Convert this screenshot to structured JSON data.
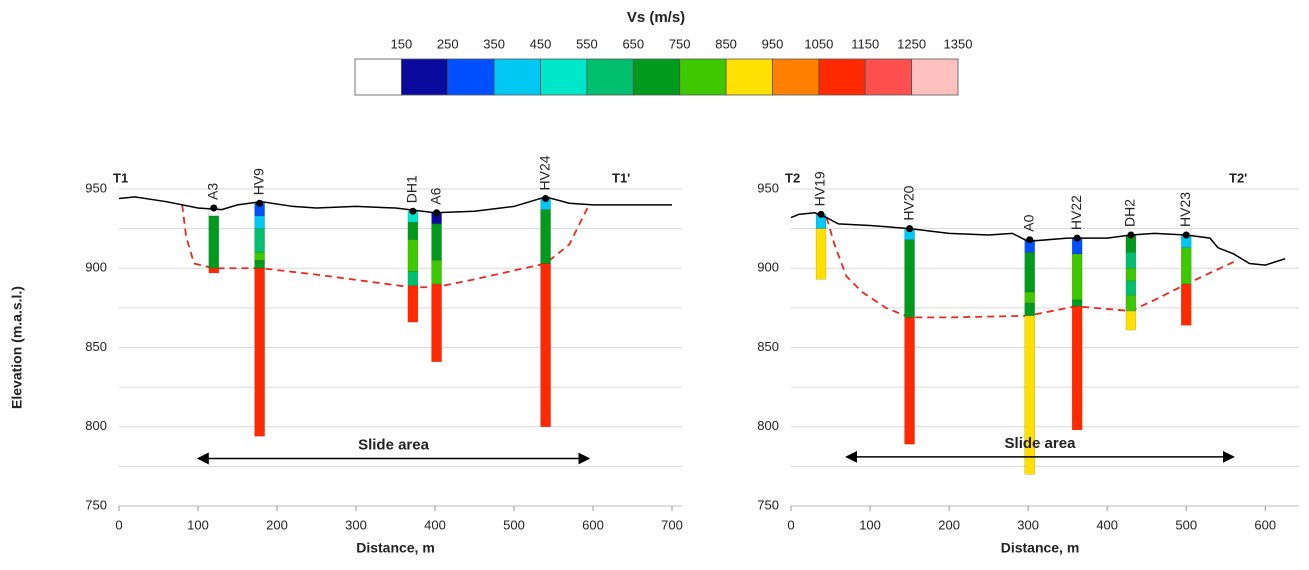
{
  "colorbar": {
    "title": "Vs (m/s)",
    "ticks": [
      150,
      250,
      350,
      450,
      550,
      650,
      750,
      850,
      950,
      1050,
      1150,
      1250,
      1350
    ],
    "colors": [
      "#ffffff",
      "#0a0a9c",
      "#0050ff",
      "#00c8f5",
      "#00e6c8",
      "#00c070",
      "#009a1e",
      "#3ec800",
      "#ffe000",
      "#ff8000",
      "#ff2a00",
      "#ff5050",
      "#ffc0c0"
    ]
  },
  "chart_data": [
    {
      "type": "profile",
      "xlabel": "Distance, m",
      "ylabel": "Elevation (m.a.s.l.)",
      "left_label": "T1",
      "right_label": "T1'",
      "xlim": [
        0,
        700
      ],
      "ylim": [
        750,
        950
      ],
      "xticks": [
        0,
        100,
        200,
        300,
        400,
        500,
        600,
        700
      ],
      "yticks": [
        750,
        800,
        850,
        900,
        950
      ],
      "ygrid": [
        775,
        800,
        825,
        850,
        875,
        900,
        925,
        950
      ],
      "surface": {
        "color": "#000000",
        "x": [
          0,
          20,
          60,
          100,
          130,
          150,
          180,
          220,
          250,
          300,
          350,
          400,
          450,
          500,
          540,
          570,
          600,
          700
        ],
        "y": [
          944,
          945,
          942,
          938,
          937,
          940,
          942,
          939,
          938,
          939,
          938,
          935,
          936,
          939,
          945,
          941,
          940,
          940
        ]
      },
      "slide_surface": {
        "color": "#e8281e",
        "x": [
          80,
          85,
          95,
          120,
          180,
          250,
          370,
          400,
          450,
          540,
          570,
          595
        ],
        "y": [
          940,
          920,
          903,
          900,
          900,
          896,
          888,
          888,
          893,
          903,
          915,
          940
        ]
      },
      "arrow": {
        "label": "Slide area",
        "x": [
          100,
          595
        ],
        "y": 780
      },
      "boreholes": [
        {
          "name": "A3",
          "x": 120,
          "layers": [
            {
              "top": 938,
              "bottom": 933,
              "color": "#ffffff"
            },
            {
              "top": 933,
              "bottom": 900,
              "color": "#009a1e"
            },
            {
              "top": 900,
              "bottom": 897,
              "color": "#ff2a00"
            }
          ]
        },
        {
          "name": "HV9",
          "x": 178,
          "layers": [
            {
              "top": 941,
              "bottom": 933,
              "color": "#0050ff"
            },
            {
              "top": 933,
              "bottom": 925,
              "color": "#00c8f5"
            },
            {
              "top": 925,
              "bottom": 910,
              "color": "#00c070"
            },
            {
              "top": 910,
              "bottom": 905,
              "color": "#3ec800"
            },
            {
              "top": 905,
              "bottom": 900,
              "color": "#009a1e"
            },
            {
              "top": 900,
              "bottom": 794,
              "color": "#ff2a00"
            }
          ]
        },
        {
          "name": "DH1",
          "x": 372,
          "layers": [
            {
              "top": 936,
              "bottom": 929,
              "color": "#00e6c8"
            },
            {
              "top": 929,
              "bottom": 918,
              "color": "#009a1e"
            },
            {
              "top": 918,
              "bottom": 898,
              "color": "#3ec800"
            },
            {
              "top": 898,
              "bottom": 889,
              "color": "#00c070"
            },
            {
              "top": 889,
              "bottom": 866,
              "color": "#ff2a00"
            }
          ]
        },
        {
          "name": "A6",
          "x": 402,
          "layers": [
            {
              "top": 935,
              "bottom": 928,
              "color": "#0a0a9c"
            },
            {
              "top": 928,
              "bottom": 905,
              "color": "#009a1e"
            },
            {
              "top": 905,
              "bottom": 890,
              "color": "#3ec800"
            },
            {
              "top": 890,
              "bottom": 841,
              "color": "#ff2a00"
            }
          ]
        },
        {
          "name": "HV24",
          "x": 540,
          "layers": [
            {
              "top": 944,
              "bottom": 937,
              "color": "#00c8f5"
            },
            {
              "top": 937,
              "bottom": 903,
              "color": "#009a1e"
            },
            {
              "top": 903,
              "bottom": 800,
              "color": "#ff2a00"
            }
          ]
        }
      ]
    },
    {
      "type": "profile",
      "xlabel": "Distance, m",
      "left_label": "T2",
      "right_label": "T2'",
      "xlim": [
        0,
        630
      ],
      "ylim": [
        750,
        950
      ],
      "xticks": [
        0,
        100,
        200,
        300,
        400,
        500,
        600
      ],
      "yticks": [
        750,
        800,
        850,
        900,
        950
      ],
      "ygrid": [
        775,
        800,
        825,
        850,
        875,
        900,
        925,
        950
      ],
      "surface": {
        "color": "#000000",
        "x": [
          0,
          10,
          30,
          45,
          60,
          100,
          150,
          200,
          250,
          280,
          300,
          350,
          400,
          430,
          460,
          500,
          530,
          540,
          560,
          580,
          600,
          625
        ],
        "y": [
          932,
          934,
          935,
          932,
          928,
          927,
          925,
          922,
          921,
          922,
          917,
          919,
          919,
          921,
          922,
          921,
          919,
          913,
          909,
          903,
          902,
          906
        ]
      },
      "slide_surface": {
        "color": "#e8281e",
        "x": [
          45,
          55,
          70,
          90,
          120,
          150,
          200,
          300,
          360,
          430,
          460,
          500,
          560
        ],
        "y": [
          932,
          915,
          895,
          885,
          875,
          869,
          869,
          870,
          876,
          873,
          880,
          890,
          904
        ]
      },
      "arrow": {
        "label": "Slide area",
        "x": [
          70,
          560
        ],
        "y": 781
      },
      "boreholes": [
        {
          "name": "HV19",
          "x": 38,
          "layers": [
            {
              "top": 934,
              "bottom": 925,
              "color": "#00c8f5"
            },
            {
              "top": 925,
              "bottom": 893,
              "color": "#ffe000"
            }
          ]
        },
        {
          "name": "HV20",
          "x": 150,
          "layers": [
            {
              "top": 925,
              "bottom": 918,
              "color": "#00c8f5"
            },
            {
              "top": 918,
              "bottom": 869,
              "color": "#009a1e"
            },
            {
              "top": 869,
              "bottom": 789,
              "color": "#ff2a00"
            }
          ]
        },
        {
          "name": "A0",
          "x": 302,
          "layers": [
            {
              "top": 918,
              "bottom": 910,
              "color": "#0050ff"
            },
            {
              "top": 910,
              "bottom": 885,
              "color": "#009a1e"
            },
            {
              "top": 885,
              "bottom": 878,
              "color": "#3ec800"
            },
            {
              "top": 878,
              "bottom": 870,
              "color": "#009a1e"
            },
            {
              "top": 870,
              "bottom": 770,
              "color": "#ffe000"
            }
          ]
        },
        {
          "name": "HV22",
          "x": 362,
          "layers": [
            {
              "top": 919,
              "bottom": 909,
              "color": "#0050ff"
            },
            {
              "top": 909,
              "bottom": 880,
              "color": "#3ec800"
            },
            {
              "top": 880,
              "bottom": 876,
              "color": "#009a1e"
            },
            {
              "top": 876,
              "bottom": 798,
              "color": "#ff2a00"
            }
          ]
        },
        {
          "name": "DH2",
          "x": 430,
          "layers": [
            {
              "top": 921,
              "bottom": 910,
              "color": "#009a1e"
            },
            {
              "top": 910,
              "bottom": 900,
              "color": "#00c070"
            },
            {
              "top": 900,
              "bottom": 892,
              "color": "#3ec800"
            },
            {
              "top": 892,
              "bottom": 883,
              "color": "#00c070"
            },
            {
              "top": 883,
              "bottom": 873,
              "color": "#3ec800"
            },
            {
              "top": 873,
              "bottom": 861,
              "color": "#ffe000"
            }
          ]
        },
        {
          "name": "HV23",
          "x": 500,
          "layers": [
            {
              "top": 921,
              "bottom": 913,
              "color": "#00c8f5"
            },
            {
              "top": 913,
              "bottom": 890,
              "color": "#3ec800"
            },
            {
              "top": 890,
              "bottom": 864,
              "color": "#ff2a00"
            }
          ]
        }
      ]
    }
  ]
}
